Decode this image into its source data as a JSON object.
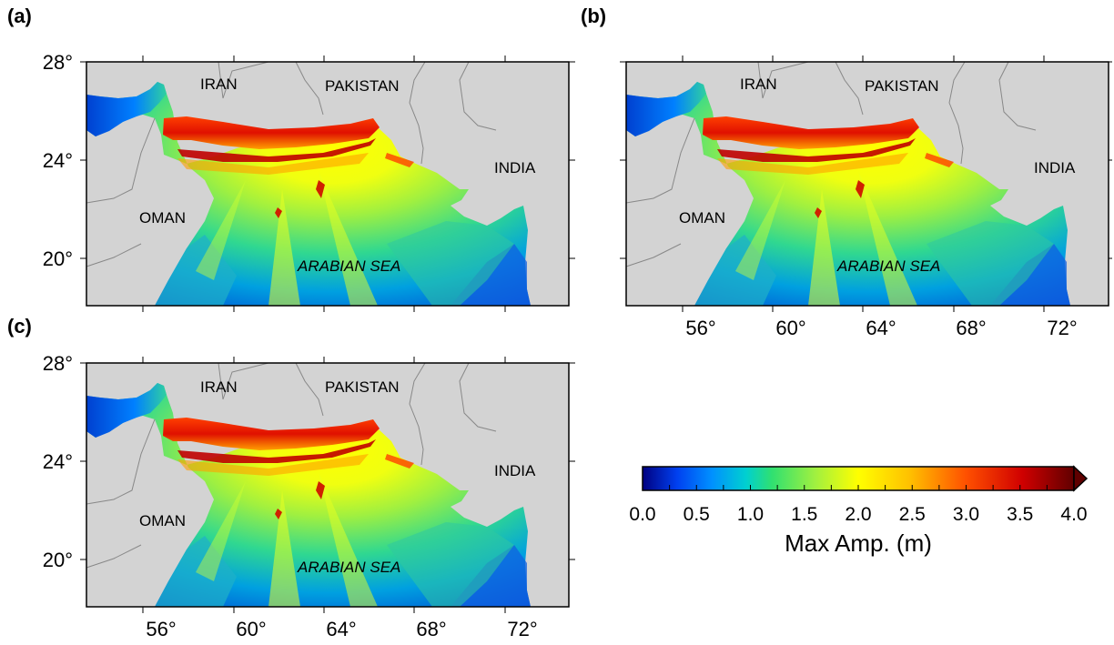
{
  "panels": [
    {
      "label": "(a)",
      "show_lat": true,
      "show_lon": false
    },
    {
      "label": "(b)",
      "show_lat": false,
      "show_lon": true
    },
    {
      "label": "(c)",
      "show_lat": true,
      "show_lon": true
    }
  ],
  "axes": {
    "lat_ticks": [
      "28°",
      "24°",
      "20°"
    ],
    "lon_ticks": [
      "56°",
      "60°",
      "64°",
      "68°",
      "72°"
    ]
  },
  "places": {
    "iran": "IRAN",
    "pakistan": "PAKISTAN",
    "india": "INDIA",
    "oman": "OMAN",
    "sea": "ARABIAN SEA"
  },
  "colorbar": {
    "title": "Max Amp. (m)",
    "tick_labels": [
      "0.0",
      "0.5",
      "1.0",
      "1.5",
      "2.0",
      "2.5",
      "3.0",
      "3.5",
      "4.0"
    ],
    "range": [
      0.0,
      4.0
    ],
    "colormap": [
      "#000080",
      "#0060ff",
      "#00d0d0",
      "#30e080",
      "#c0ff30",
      "#ffff00",
      "#ffb000",
      "#ff3000",
      "#c00000",
      "#500000"
    ]
  },
  "colors": {
    "land": "#d3d3d3",
    "border": "#888888",
    "frame": "#000000"
  }
}
